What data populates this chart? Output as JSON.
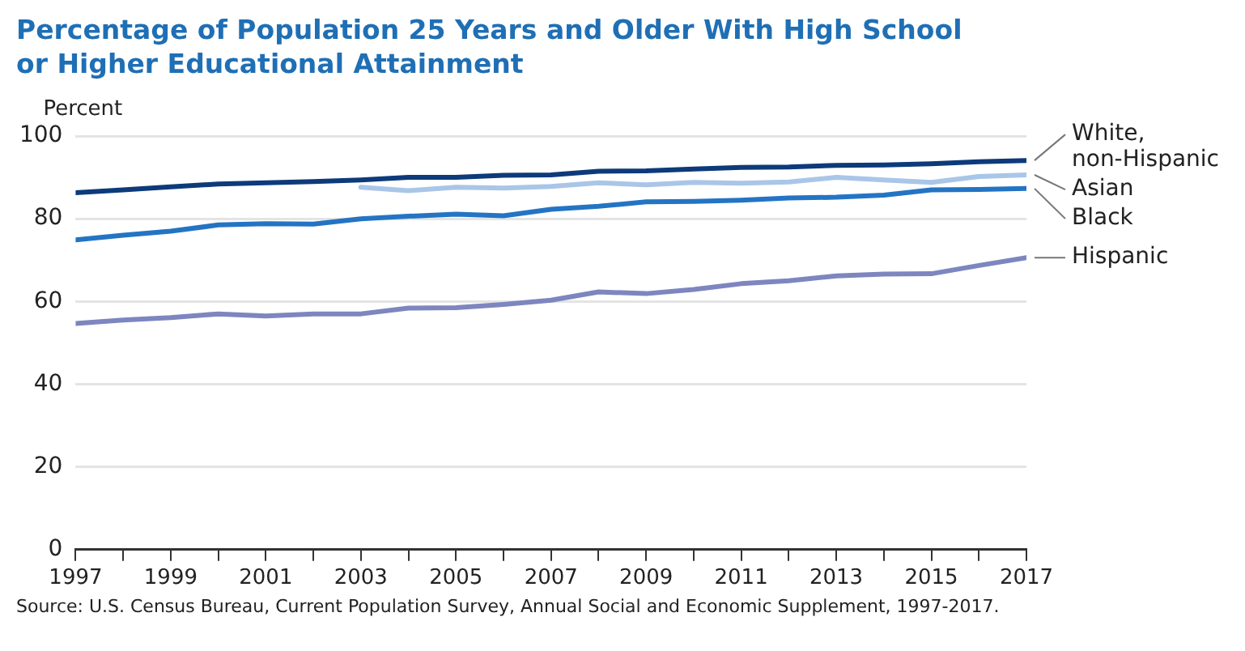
{
  "chart_data": {
    "type": "line",
    "title": "Percentage of Population 25 Years and Older With High School or Higher Educational Attainment",
    "ylabel": "Percent",
    "x": [
      1997,
      1998,
      1999,
      2000,
      2001,
      2002,
      2003,
      2004,
      2005,
      2006,
      2007,
      2008,
      2009,
      2010,
      2011,
      2012,
      2013,
      2014,
      2015,
      2016,
      2017
    ],
    "series": [
      {
        "name": "White, non-Hispanic",
        "color": "#0d3a7a",
        "values": [
          86.3,
          87.0,
          87.7,
          88.4,
          88.7,
          89.0,
          89.4,
          90.0,
          90.0,
          90.5,
          90.6,
          91.5,
          91.6,
          92.0,
          92.4,
          92.5,
          92.9,
          93.0,
          93.3,
          93.8,
          94.1
        ]
      },
      {
        "name": "Asian",
        "color": "#a9c6e8",
        "values": [
          null,
          null,
          null,
          null,
          null,
          null,
          87.6,
          86.8,
          87.6,
          87.4,
          87.8,
          88.7,
          88.2,
          88.8,
          88.6,
          88.9,
          90.0,
          89.4,
          88.8,
          90.2,
          90.6
        ]
      },
      {
        "name": "Black",
        "color": "#2474c4",
        "values": [
          74.9,
          76.0,
          77.0,
          78.5,
          78.8,
          78.7,
          80.0,
          80.6,
          81.1,
          80.7,
          82.3,
          83.0,
          84.1,
          84.2,
          84.5,
          85.0,
          85.2,
          85.7,
          87.0,
          87.1,
          87.3
        ]
      },
      {
        "name": "Hispanic",
        "color": "#7d86bf",
        "values": [
          54.7,
          55.5,
          56.1,
          57.0,
          56.5,
          57.0,
          57.0,
          58.4,
          58.5,
          59.3,
          60.3,
          62.3,
          61.9,
          62.9,
          64.3,
          65.0,
          66.2,
          66.6,
          66.7,
          68.7,
          70.6
        ]
      }
    ],
    "xlim": [
      1997,
      2017
    ],
    "xticks": [
      1997,
      {
        "value": 1998,
        "label": null
      },
      1999,
      {
        "value": 2000,
        "label": null
      },
      2001,
      {
        "value": 2002,
        "label": null
      },
      2003,
      {
        "value": 2004,
        "label": null
      },
      2005,
      {
        "value": 2006,
        "label": null
      },
      2007,
      {
        "value": 2008,
        "label": null
      },
      2009,
      {
        "value": 2010,
        "label": null
      },
      2011,
      {
        "value": 2012,
        "label": null
      },
      2013,
      {
        "value": 2014,
        "label": null
      },
      2015,
      {
        "value": 2016,
        "label": null
      },
      2017
    ],
    "ylim": [
      0,
      100
    ],
    "yticks": [
      0,
      20,
      40,
      60,
      80,
      100
    ],
    "grid": "y",
    "legend": false,
    "marker": "none",
    "line_style": "solid",
    "annotations": [
      "Source: U.S. Census Bureau, Current Population Survey, Annual Social and Economic Supplement, 1997-2017."
    ]
  }
}
